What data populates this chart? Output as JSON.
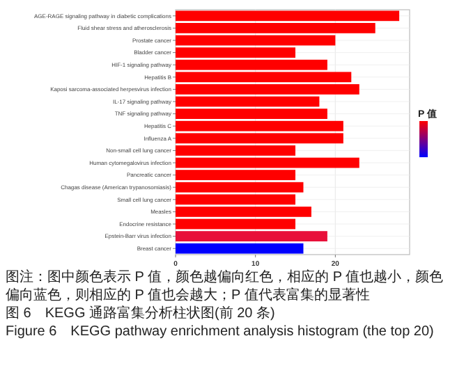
{
  "chart_data": {
    "type": "bar",
    "orientation": "horizontal",
    "categories": [
      "AGE-RAGE signaling pathway in diabetic complications",
      "Fluid shear stress and atherosclerosis",
      "Prostate cancer",
      "Bladder cancer",
      "HIF-1 signaling pathway",
      "Hepatitis B",
      "Kaposi sarcoma-associated herpesvirus infection",
      "IL-17 signaling pathway",
      "TNF signaling pathway",
      "Hepatitis C",
      "Influenza A",
      "Non-small cell lung cancer",
      "Human cytomegalovirus infection",
      "Pancreatic cancer",
      "Chagas disease (American trypanosomiasis)",
      "Small cell lung cancer",
      "Measles",
      "Endocrine resistance",
      "Epstein-Barr virus infection",
      "Breast cancer"
    ],
    "values": [
      28,
      25,
      20,
      15,
      19,
      22,
      23,
      18,
      19,
      21,
      21,
      15,
      23,
      15,
      16,
      15,
      17,
      15,
      19,
      16
    ],
    "colors": [
      "#ff0000",
      "#ff0000",
      "#ff0000",
      "#ff0000",
      "#ff0000",
      "#ff0000",
      "#ff0000",
      "#ff0000",
      "#ff0000",
      "#ff0000",
      "#ff0000",
      "#ff0000",
      "#ff0000",
      "#ff0000",
      "#ff0000",
      "#ff0000",
      "#ff0000",
      "#ff0000",
      "#e8103a",
      "#0000ff"
    ],
    "xlim": [
      0,
      29.3
    ],
    "xticks": [
      0,
      10,
      20
    ],
    "grid": true,
    "clabel": "P 值",
    "annotations": [
      "图注：图中颜色表示 P 值，颜色越偏向红色，相应的 P 值也越小，颜色偏向蓝色，则相应的 P 值也会越大；P 值代表富集的显著性",
      "图 6　KEGG 通路富集分析柱状图(前 20 条)",
      "Figure 6　KEGG pathway enrichment analysis histogram (the top 20)"
    ]
  }
}
